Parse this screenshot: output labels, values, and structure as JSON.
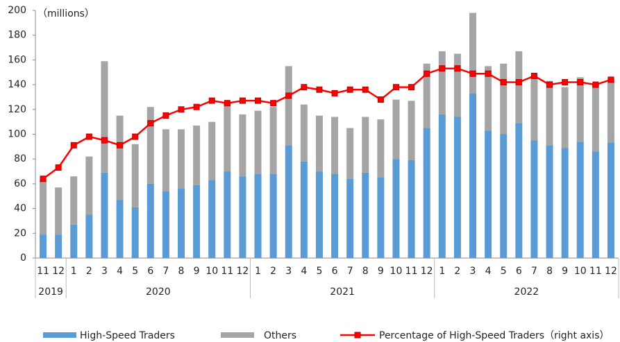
{
  "chart_data": {
    "type": "stacked_bar_line",
    "unit_label": "（millions）",
    "categories": [
      "11",
      "12",
      "1",
      "2",
      "3",
      "4",
      "5",
      "6",
      "7",
      "8",
      "9",
      "10",
      "11",
      "12",
      "1",
      "2",
      "3",
      "4",
      "5",
      "6",
      "7",
      "8",
      "9",
      "10",
      "11",
      "12",
      "1",
      "2",
      "3",
      "4",
      "5",
      "6",
      "7",
      "8",
      "9",
      "10",
      "11",
      "12"
    ],
    "years": [
      {
        "name": "2019",
        "count": 2
      },
      {
        "name": "2020",
        "count": 12
      },
      {
        "name": "2021",
        "count": 12
      },
      {
        "name": "2022",
        "count": 12
      }
    ],
    "series": [
      {
        "name": "High-Speed Traders",
        "color": "#5b9bd5",
        "kind": "bar",
        "values": [
          19,
          19,
          27,
          35,
          69,
          47,
          41,
          60,
          54,
          56,
          59,
          63,
          70,
          66,
          68,
          68,
          91,
          78,
          70,
          68,
          64,
          69,
          65,
          80,
          79,
          105,
          116,
          114,
          133,
          103,
          100,
          109,
          95,
          91,
          89,
          94,
          86,
          93
        ]
      },
      {
        "name": "Others",
        "color": "#a5a5a5",
        "kind": "bar",
        "values": [
          44,
          38,
          39,
          47,
          90,
          68,
          51,
          62,
          50,
          48,
          48,
          47,
          55,
          50,
          51,
          54,
          64,
          46,
          45,
          46,
          41,
          45,
          47,
          48,
          48,
          52,
          51,
          51,
          65,
          52,
          57,
          58,
          50,
          52,
          49,
          52,
          55,
          52
        ]
      },
      {
        "name": "Percentage of High-Speed Traders（right axis）",
        "color": "#ff0000",
        "kind": "line",
        "axis": "y2",
        "values": [
          28.8,
          32.9,
          41,
          44.1,
          42.8,
          41,
          44.1,
          49,
          51.8,
          54,
          54.9,
          57.2,
          56.3,
          57.2,
          57.2,
          56.3,
          59,
          62.1,
          61.2,
          59.9,
          61.2,
          61.2,
          57.6,
          62.1,
          62.1,
          67,
          68.9,
          68.9,
          67,
          67,
          63.9,
          63.9,
          66.2,
          63,
          63.9,
          63.9,
          63,
          64.8
        ]
      }
    ],
    "ylim": [
      0,
      200
    ],
    "yticks": [
      0,
      20,
      40,
      60,
      80,
      100,
      120,
      140,
      160,
      180,
      200
    ],
    "y2lim": [
      0,
      90
    ],
    "grid": false
  }
}
